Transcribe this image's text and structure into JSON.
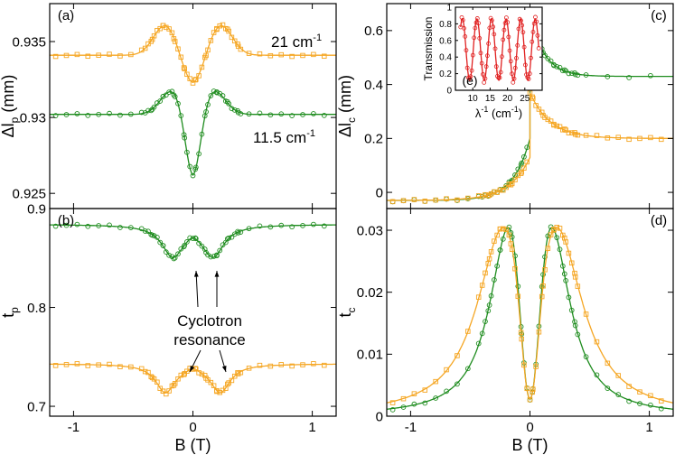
{
  "colors": {
    "orange": "#F5A623",
    "green": "#1E8C1E",
    "red": "#E02020",
    "axis": "#000000"
  },
  "chart_data": [
    {
      "id": "a",
      "type": "line",
      "panel_label": "(a)",
      "ylabel": "Δl",
      "ylabel_sub": "p",
      "ylabel_unit": "(mm)",
      "xlim": [
        -1.2,
        1.2
      ],
      "ylim": [
        0.924,
        0.9375
      ],
      "yticks": [
        0.925,
        0.93,
        0.935
      ],
      "ytick_labels": [
        "0.925",
        "0.93",
        "0.935"
      ],
      "xticks": [
        -1,
        0,
        1
      ],
      "annotations": [
        {
          "text": "21 cm",
          "sup": "-1",
          "color": "orange"
        },
        {
          "text": "11.5 cm",
          "sup": "-1",
          "color": "green"
        }
      ],
      "series": [
        {
          "name": "21 cm-1",
          "color": "orange",
          "marker": "square",
          "model": "cr",
          "params": {
            "base": 0.9341,
            "peak": 0.9361,
            "dip": 0.9323,
            "B0": 0.23
          }
        },
        {
          "name": "11.5 cm-1",
          "color": "green",
          "marker": "circle",
          "model": "cr",
          "params": {
            "base": 0.9302,
            "peak": 0.9318,
            "dip": 0.9262,
            "B0": 0.17
          }
        }
      ]
    },
    {
      "id": "b",
      "type": "line",
      "panel_label": "(b)",
      "ylabel": "t",
      "ylabel_sub": "p",
      "ylabel_unit": "",
      "xlim": [
        -1.2,
        1.2
      ],
      "ylim": [
        0.69,
        0.9
      ],
      "yticks": [
        0.7,
        0.8,
        0.9
      ],
      "ytick_labels": [
        "0.7",
        "0.8",
        "0.9"
      ],
      "xticks": [
        -1,
        0,
        1
      ],
      "xtick_labels": [
        "-1",
        "0",
        "1"
      ],
      "xlabel": "B (T)",
      "annotations": [
        {
          "text": "Cyclotron"
        },
        {
          "text": "resonance"
        }
      ],
      "series": [
        {
          "name": "11.5 cm-1",
          "color": "green",
          "marker": "circle",
          "model": "cyc",
          "params": {
            "base": 0.884,
            "depth": 0.036,
            "B0": 0.17,
            "g": 0.11,
            "cdepth": 0.0
          }
        },
        {
          "name": "21 cm-1",
          "color": "orange",
          "marker": "square",
          "model": "cyc",
          "params": {
            "base": 0.743,
            "depth": 0.033,
            "B0": 0.23,
            "g": 0.1,
            "cdepth": 0.0
          }
        }
      ]
    },
    {
      "id": "c",
      "type": "line",
      "panel_label": "(c)",
      "ylabel": "Δl",
      "ylabel_sub": "c",
      "ylabel_unit": "(mm)",
      "xlim": [
        -1.2,
        1.2
      ],
      "ylim": [
        -0.06,
        0.7
      ],
      "yticks": [
        0,
        0.2,
        0.4,
        0.6
      ],
      "ytick_labels": [
        "0",
        "0.2",
        "0.4",
        "0.6"
      ],
      "xticks": [
        -1,
        0,
        1
      ],
      "series": [
        {
          "name": "11.5 cm-1",
          "color": "green",
          "marker": "circle",
          "model": "jump",
          "params": {
            "left": -0.03,
            "edge": 0.2,
            "peak": 0.66,
            "right": 0.43,
            "wl": 0.14,
            "wr": 0.12
          }
        },
        {
          "name": "21 cm-1",
          "color": "orange",
          "marker": "square",
          "model": "jump",
          "params": {
            "left": -0.03,
            "edge": 0.13,
            "peak": 0.37,
            "right": 0.2,
            "wl": 0.17,
            "wr": 0.17
          }
        }
      ]
    },
    {
      "id": "d",
      "type": "line",
      "panel_label": "(d)",
      "ylabel": "t",
      "ylabel_sub": "c",
      "ylabel_unit": "",
      "xlim": [
        -1.2,
        1.2
      ],
      "ylim": [
        0,
        0.0335
      ],
      "yticks": [
        0,
        0.01,
        0.02,
        0.03
      ],
      "ytick_labels": [
        "0",
        "0.01",
        "0.02",
        "0.03"
      ],
      "xticks": [
        -1,
        0,
        1
      ],
      "xtick_labels": [
        "-1",
        "0",
        "1"
      ],
      "xlabel": "B (T)",
      "series": [
        {
          "name": "11.5 cm-1",
          "color": "green",
          "marker": "circle",
          "model": "tc",
          "params": {
            "B0": 0.17,
            "peak": 0.031,
            "g": 0.2,
            "dipw": 0.09
          }
        },
        {
          "name": "21 cm-1",
          "color": "orange",
          "marker": "square",
          "model": "tc",
          "params": {
            "B0": 0.22,
            "peak": 0.0305,
            "g": 0.27,
            "dipw": 0.09
          }
        }
      ]
    },
    {
      "id": "e",
      "type": "line",
      "panel_label": "(e)",
      "ylabel": "Transmission",
      "xlabel": "λ",
      "xlabel_sup": "-1",
      "xlabel_unit": "(cm",
      "xlabel_unit_sup": "-1",
      "xlabel_end": ")",
      "xlim": [
        5,
        30
      ],
      "ylim": [
        0,
        1
      ],
      "xticks": [
        10,
        15,
        20,
        25
      ],
      "xtick_labels": [
        "10",
        "15",
        "20",
        "25"
      ],
      "yticks": [
        0,
        0.2,
        0.4,
        0.6,
        0.8,
        1.0
      ],
      "ytick_labels": [
        "0",
        "0.2",
        "0.4",
        "0.6",
        "0.8",
        "1"
      ],
      "series": [
        {
          "name": "transmission",
          "color": "red",
          "model": "fabry",
          "params": {
            "period": 4.2,
            "min": 0.12,
            "max": 0.86,
            "phase": 7.0
          }
        }
      ]
    }
  ]
}
